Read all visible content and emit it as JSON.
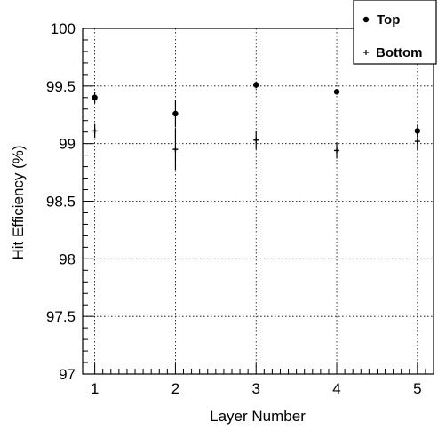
{
  "chart_data": {
    "type": "scatter",
    "xlabel": "Layer Number",
    "ylabel": "Hit Efficiency (%)",
    "xlim": [
      0.85,
      5.2
    ],
    "ylim": [
      97,
      100
    ],
    "x_ticks": [
      "1",
      "2",
      "3",
      "4",
      "5"
    ],
    "y_ticks": [
      "97",
      "97.5",
      "98",
      "98.5",
      "99",
      "99.5",
      "100"
    ],
    "grid": true,
    "legend_position": "top-right",
    "series": [
      {
        "name": "Top",
        "marker": "dot",
        "points": [
          {
            "x": 1,
            "y": 99.4,
            "err": 0.05
          },
          {
            "x": 2,
            "y": 99.26,
            "err": 0.12
          },
          {
            "x": 3,
            "y": 99.51,
            "err": 0.03
          },
          {
            "x": 4,
            "y": 99.45,
            "err": 0.02
          },
          {
            "x": 5,
            "y": 99.11,
            "err": 0.05
          }
        ]
      },
      {
        "name": "Bottom",
        "marker": "plus",
        "points": [
          {
            "x": 1,
            "y": 99.11,
            "err": 0.06
          },
          {
            "x": 2,
            "y": 98.95,
            "err": 0.18
          },
          {
            "x": 3,
            "y": 99.03,
            "err": 0.08
          },
          {
            "x": 4,
            "y": 98.94,
            "err": 0.07
          },
          {
            "x": 5,
            "y": 99.02,
            "err": 0.08
          }
        ]
      }
    ]
  }
}
